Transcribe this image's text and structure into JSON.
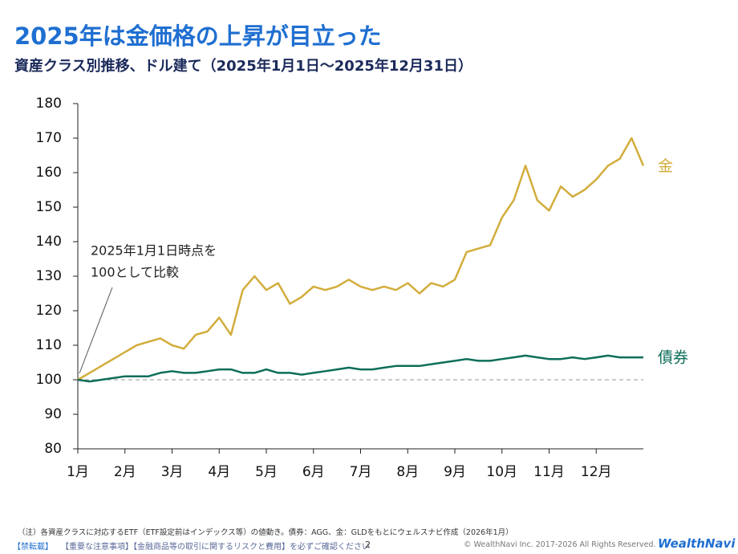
{
  "header": {
    "title": "2025年は金価格の上昇が目立った",
    "subtitle": "資産クラス別推移、ドル建て（2025年1月1日～2025年12月31日）"
  },
  "chart_data": {
    "type": "line",
    "categories": [
      "1月",
      null,
      null,
      null,
      "2月",
      null,
      null,
      null,
      "3月",
      null,
      null,
      null,
      "4月",
      null,
      null,
      null,
      "5月",
      null,
      null,
      null,
      "6月",
      null,
      null,
      null,
      "7月",
      null,
      null,
      null,
      "8月",
      null,
      null,
      null,
      "9月",
      null,
      null,
      null,
      "10月",
      null,
      null,
      null,
      "11月",
      null,
      null,
      null,
      "12月",
      null,
      null,
      null,
      null
    ],
    "series": [
      {
        "name": "金",
        "color": "#d2ad3c",
        "values": [
          100,
          102,
          104,
          106,
          108,
          110,
          111,
          112,
          110,
          109,
          113,
          114,
          118,
          113,
          126,
          130,
          126,
          128,
          122,
          124,
          127,
          126,
          127,
          129,
          127,
          126,
          127,
          126,
          128,
          125,
          128,
          127,
          129,
          137,
          138,
          139,
          147,
          152,
          162,
          152,
          149,
          156,
          153,
          155,
          158,
          162,
          164,
          170,
          162
        ]
      },
      {
        "name": "債券",
        "color": "#0d6e5a",
        "values": [
          100,
          99.5,
          100,
          100.5,
          101,
          101,
          101,
          102,
          102.5,
          102,
          102,
          102.5,
          103,
          103,
          102,
          102,
          103,
          102,
          102,
          101.5,
          102,
          102.5,
          103,
          103.5,
          103,
          103,
          103.5,
          104,
          104,
          104,
          104.5,
          105,
          105.5,
          106,
          105.5,
          105.5,
          106,
          106.5,
          107,
          106.5,
          106,
          106,
          106.5,
          106,
          106.5,
          107,
          106.5,
          106.5,
          106.5
        ]
      }
    ],
    "reference_line": 100,
    "annotation": [
      "2025年1月1日時点を",
      "100として比較"
    ],
    "ylim": [
      80,
      180
    ],
    "yticks": [
      80,
      90,
      100,
      110,
      120,
      130,
      140,
      150,
      160,
      170,
      180
    ],
    "grid": false
  },
  "footer": {
    "note": "（注）各資産クラスに対応するETF（ETF設定前はインデックス等）の値動き。債券：AGG、金：GLDをもとにウェルスナビ作成（2026年1月）",
    "tag": "【禁転載】",
    "notice": "【重要な注意事項】【金融商品等の取引に関するリスクと費用】を必ずご確認ください",
    "page": "2",
    "copyright": "© WealthNavi Inc. 2017-2026 All Rights Reserved.",
    "logo": "WealthNavi"
  }
}
